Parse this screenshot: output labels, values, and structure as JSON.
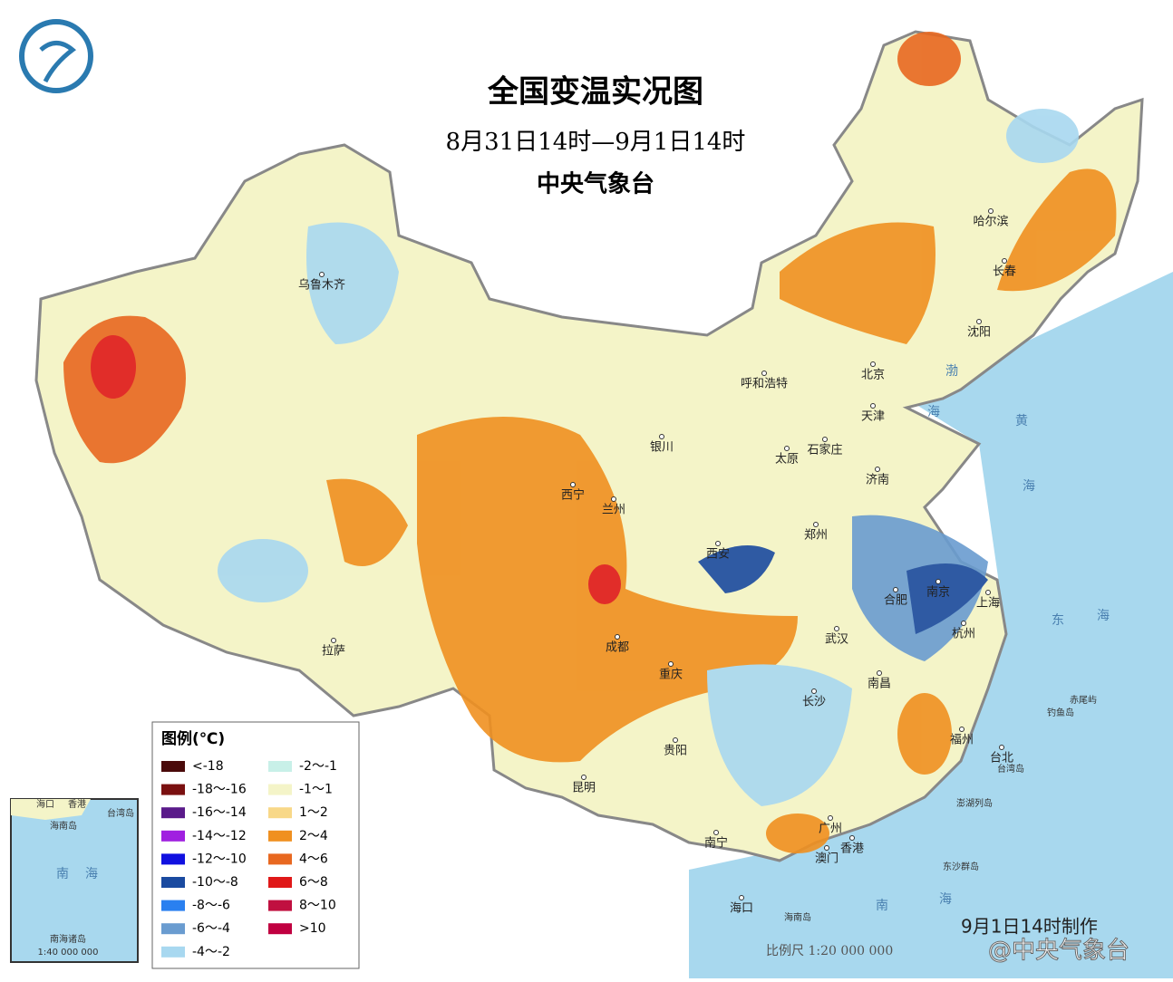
{
  "header": {
    "title": "全国变温实况图",
    "period": "8月31日14时—9月1日14时",
    "agency": "中央气象台"
  },
  "legend": {
    "title": "图例(℃)",
    "items": [
      {
        "label": "<-18",
        "color": "#4a0a0a"
      },
      {
        "label": "-18～-16",
        "color": "#7a1010"
      },
      {
        "label": "-16～-14",
        "color": "#5a1a8a"
      },
      {
        "label": "-14～-12",
        "color": "#a020e0"
      },
      {
        "label": "-12～-10",
        "color": "#1010e0"
      },
      {
        "label": "-10～-8",
        "color": "#1a4aa0"
      },
      {
        "label": "-8～-6",
        "color": "#2a80f0"
      },
      {
        "label": "-6～-4",
        "color": "#6a9cd0"
      },
      {
        "label": "-4～-2",
        "color": "#a8d8f0"
      },
      {
        "label": "-2～-1",
        "color": "#c8f0e8"
      },
      {
        "label": "-1～1",
        "color": "#f4f4c8"
      },
      {
        "label": "1～2",
        "color": "#f8d888"
      },
      {
        "label": "2～4",
        "color": "#f09020"
      },
      {
        "label": "4～6",
        "color": "#e86820"
      },
      {
        "label": "6～8",
        "color": "#e01818"
      },
      {
        "label": "8～10",
        "color": "#c01040"
      },
      {
        "label": ">10",
        "color": "#c00040"
      }
    ]
  },
  "cities": [
    "乌鲁木齐",
    "呼和浩特",
    "北京",
    "天津",
    "哈尔滨",
    "长春",
    "沈阳",
    "银川",
    "太原",
    "石家庄",
    "济南",
    "西宁",
    "兰州",
    "郑州",
    "西安",
    "合肥",
    "南京",
    "上海",
    "杭州",
    "武汉",
    "成都",
    "拉萨",
    "重庆",
    "南昌",
    "长沙",
    "福州",
    "贵阳",
    "台北",
    "昆明",
    "广州",
    "南宁",
    "香港",
    "澳门",
    "海口"
  ],
  "islands": [
    "台湾岛",
    "海南岛",
    "钓鱼岛",
    "赤尾屿",
    "澎湖列岛",
    "东沙群岛"
  ],
  "seas": [
    "渤",
    "海",
    "黄",
    "海",
    "东",
    "海",
    "南",
    "海"
  ],
  "inset": {
    "labels": [
      "海口",
      "香港",
      "台湾岛",
      "海南岛",
      "南",
      "海",
      "南海诸岛"
    ],
    "scale": "1:40 000 000"
  },
  "footer": {
    "scale": "比例尺 1:20 000 000",
    "made": "9月1日14时制作",
    "watermark": "@中央气象台"
  }
}
